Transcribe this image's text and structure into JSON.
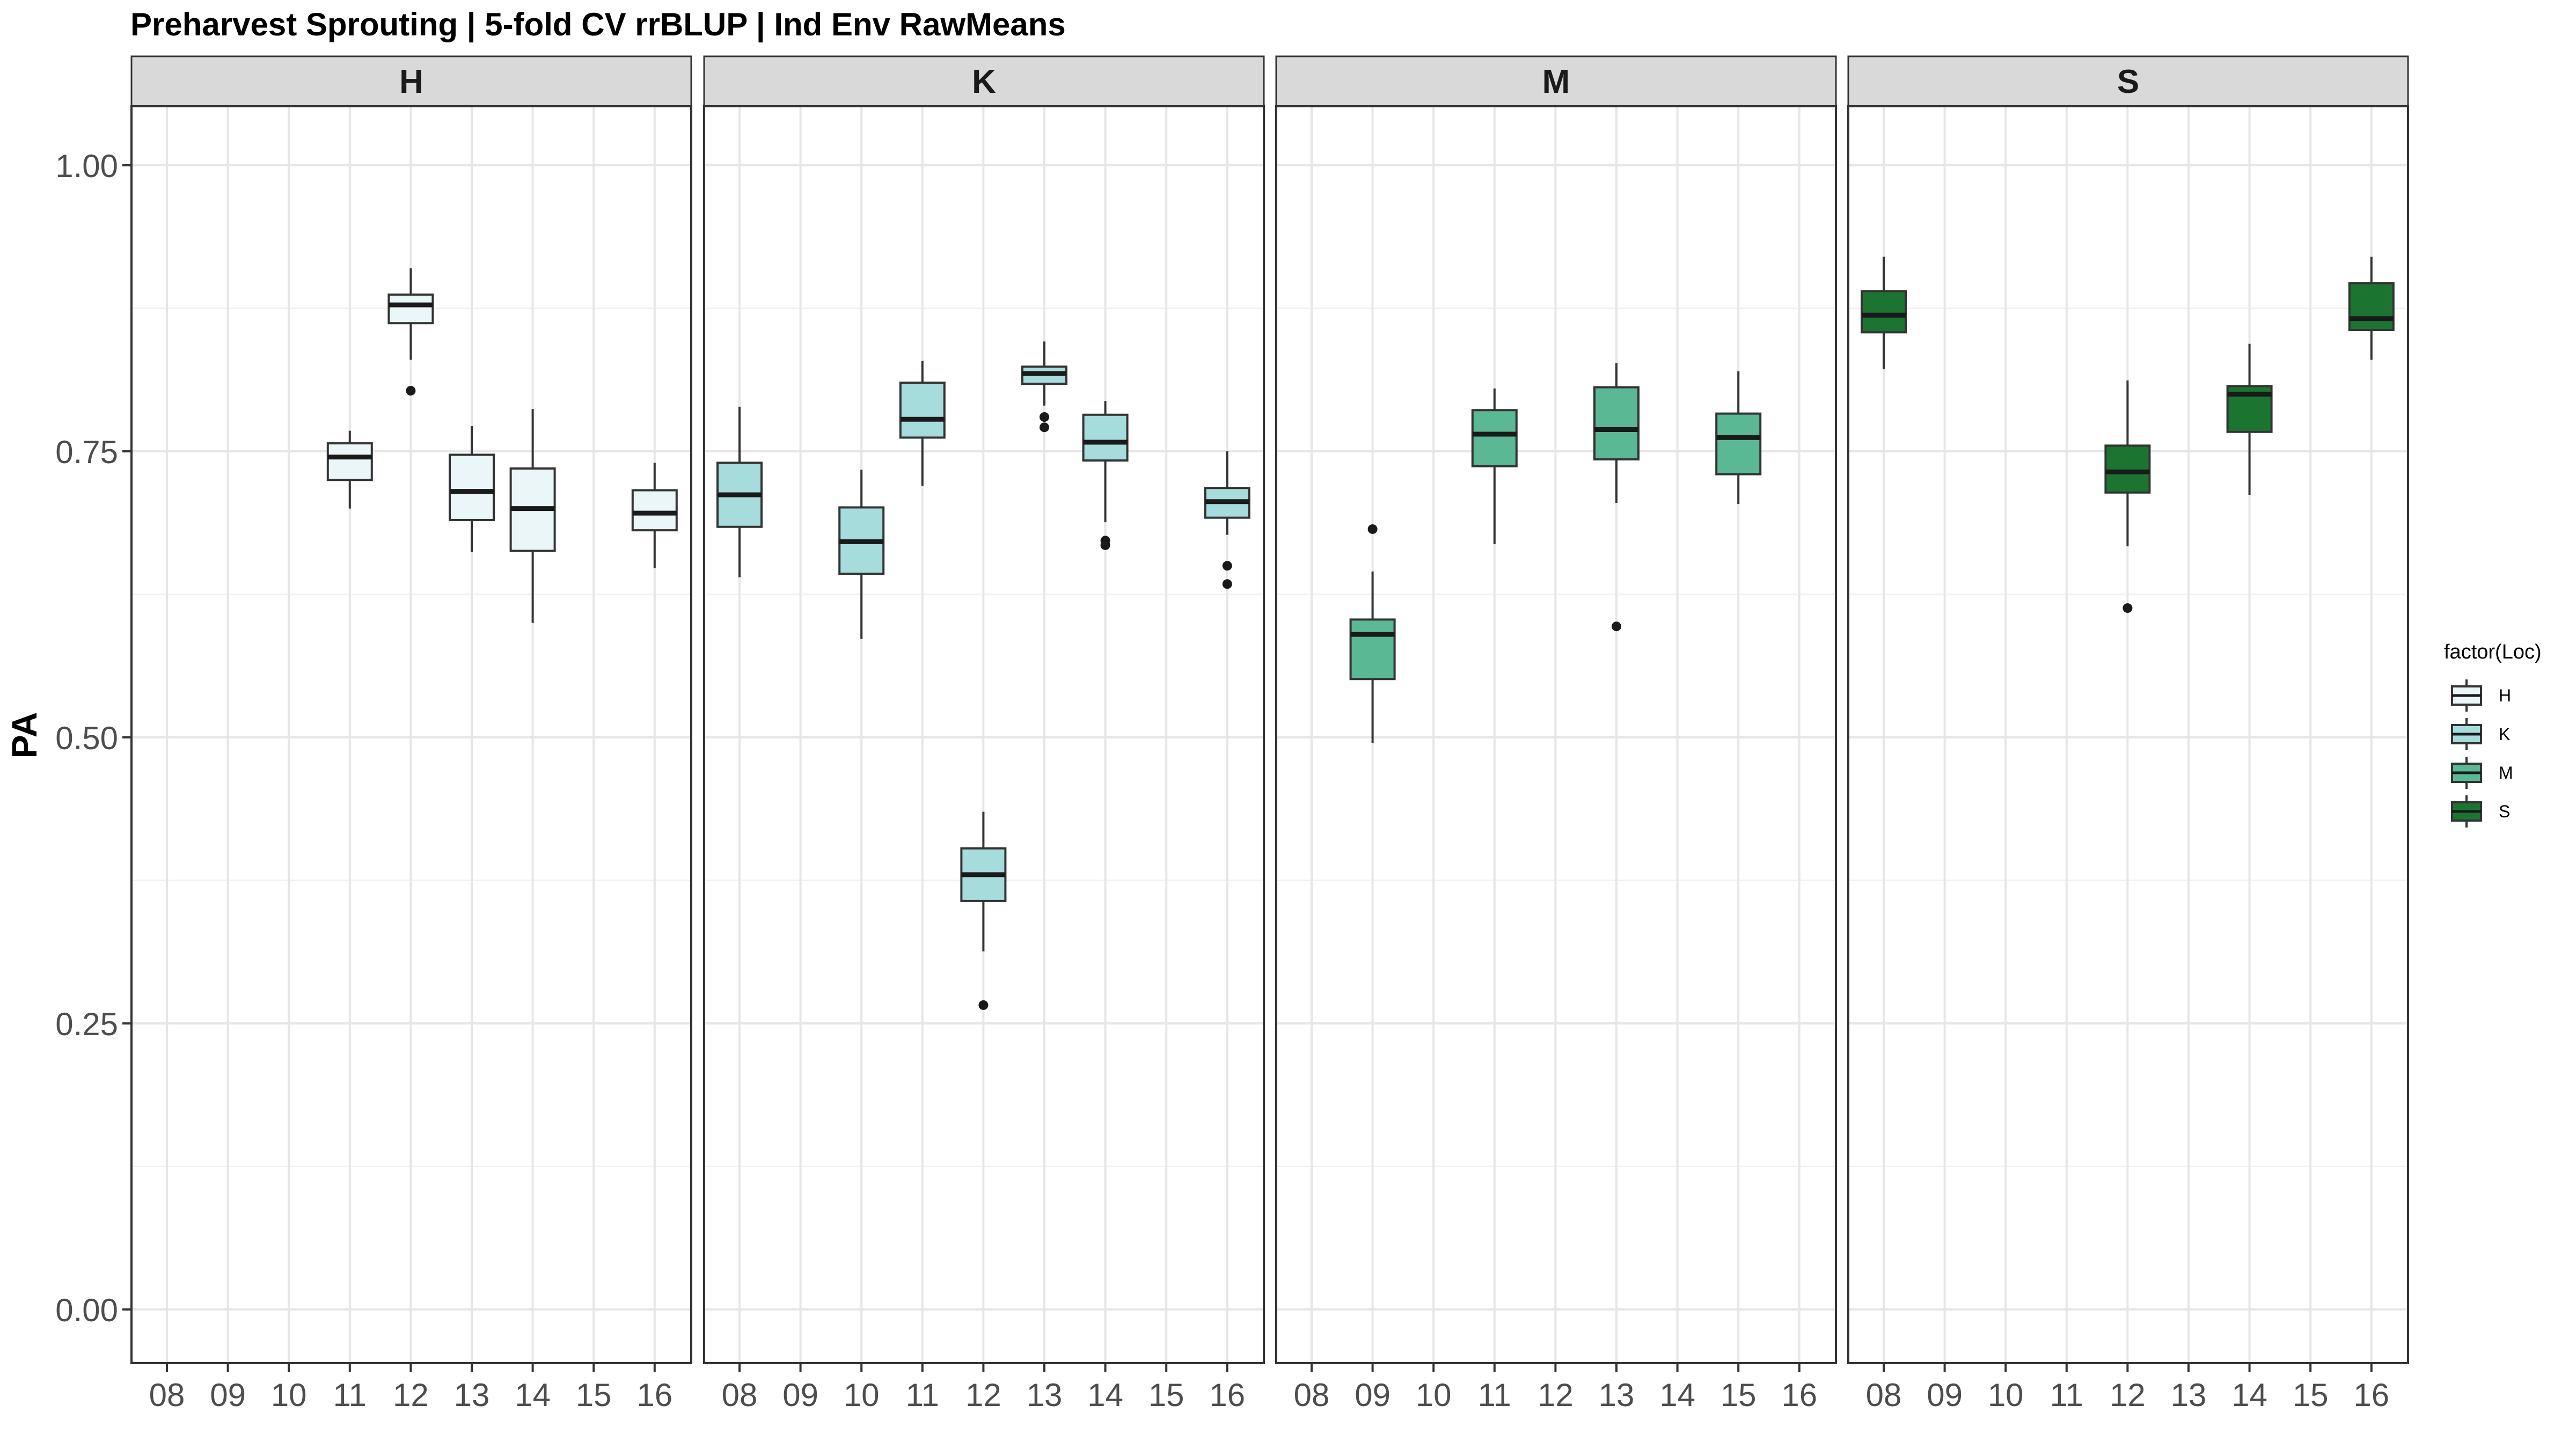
{
  "chart_data": {
    "type": "boxplot",
    "title": "Preharvest Sprouting | 5-fold CV rrBLUP | Ind Env RawMeans",
    "ylabel": "PA",
    "xlabel": "",
    "ylim": [
      -0.05,
      1.05
    ],
    "y_ticks": [
      0.0,
      0.25,
      0.5,
      0.75,
      1.0
    ],
    "y_tick_labels": [
      "0.00",
      "0.25",
      "0.50",
      "0.75",
      "1.00"
    ],
    "categories": [
      "08",
      "09",
      "10",
      "11",
      "12",
      "13",
      "14",
      "15",
      "16"
    ],
    "grid": true,
    "legend": {
      "title": "factor(Loc)",
      "position": "right",
      "entries": [
        "H",
        "K",
        "M",
        "S"
      ]
    },
    "colors": {
      "H": "#eaf6f8",
      "K": "#a6dcdc",
      "M": "#5ab894",
      "S": "#1b7531"
    },
    "facets": [
      {
        "label": "H",
        "boxes": [
          {
            "x": "11",
            "min": 0.7,
            "q1": 0.725,
            "median": 0.745,
            "q3": 0.757,
            "max": 0.768,
            "outliers": []
          },
          {
            "x": "12",
            "min": 0.83,
            "q1": 0.862,
            "median": 0.878,
            "q3": 0.887,
            "max": 0.91,
            "outliers": [
              0.803
            ]
          },
          {
            "x": "13",
            "min": 0.662,
            "q1": 0.69,
            "median": 0.715,
            "q3": 0.747,
            "max": 0.772,
            "outliers": []
          },
          {
            "x": "14",
            "min": 0.6,
            "q1": 0.663,
            "median": 0.7,
            "q3": 0.735,
            "max": 0.787,
            "outliers": []
          },
          {
            "x": "16",
            "min": 0.648,
            "q1": 0.681,
            "median": 0.696,
            "q3": 0.716,
            "max": 0.74,
            "outliers": []
          }
        ]
      },
      {
        "label": "K",
        "boxes": [
          {
            "x": "08",
            "min": 0.64,
            "q1": 0.684,
            "median": 0.712,
            "q3": 0.74,
            "max": 0.789,
            "outliers": []
          },
          {
            "x": "10",
            "min": 0.586,
            "q1": 0.643,
            "median": 0.671,
            "q3": 0.701,
            "max": 0.734,
            "outliers": []
          },
          {
            "x": "11",
            "min": 0.72,
            "q1": 0.762,
            "median": 0.778,
            "q3": 0.81,
            "max": 0.829,
            "outliers": []
          },
          {
            "x": "12",
            "min": 0.313,
            "q1": 0.357,
            "median": 0.38,
            "q3": 0.403,
            "max": 0.435,
            "outliers": [
              0.266
            ]
          },
          {
            "x": "13",
            "min": 0.79,
            "q1": 0.809,
            "median": 0.818,
            "q3": 0.824,
            "max": 0.846,
            "outliers": [
              0.78,
              0.771
            ]
          },
          {
            "x": "14",
            "min": 0.688,
            "q1": 0.742,
            "median": 0.758,
            "q3": 0.782,
            "max": 0.794,
            "outliers": [
              0.672,
              0.668
            ]
          },
          {
            "x": "16",
            "min": 0.677,
            "q1": 0.692,
            "median": 0.706,
            "q3": 0.718,
            "max": 0.75,
            "outliers": [
              0.65,
              0.634
            ]
          }
        ]
      },
      {
        "label": "M",
        "boxes": [
          {
            "x": "09",
            "min": 0.495,
            "q1": 0.551,
            "median": 0.59,
            "q3": 0.603,
            "max": 0.645,
            "outliers": [
              0.682
            ]
          },
          {
            "x": "11",
            "min": 0.669,
            "q1": 0.737,
            "median": 0.765,
            "q3": 0.786,
            "max": 0.805,
            "outliers": []
          },
          {
            "x": "13",
            "min": 0.705,
            "q1": 0.743,
            "median": 0.769,
            "q3": 0.806,
            "max": 0.827,
            "outliers": [
              0.597
            ]
          },
          {
            "x": "15",
            "min": 0.704,
            "q1": 0.73,
            "median": 0.762,
            "q3": 0.783,
            "max": 0.82,
            "outliers": []
          }
        ]
      },
      {
        "label": "S",
        "boxes": [
          {
            "x": "08",
            "min": 0.822,
            "q1": 0.854,
            "median": 0.869,
            "q3": 0.89,
            "max": 0.92,
            "outliers": []
          },
          {
            "x": "12",
            "min": 0.667,
            "q1": 0.714,
            "median": 0.732,
            "q3": 0.755,
            "max": 0.812,
            "outliers": [
              0.613
            ]
          },
          {
            "x": "14",
            "min": 0.712,
            "q1": 0.767,
            "median": 0.8,
            "q3": 0.807,
            "max": 0.844,
            "outliers": []
          },
          {
            "x": "16",
            "min": 0.83,
            "q1": 0.856,
            "median": 0.866,
            "q3": 0.897,
            "max": 0.92,
            "outliers": []
          }
        ]
      }
    ]
  }
}
